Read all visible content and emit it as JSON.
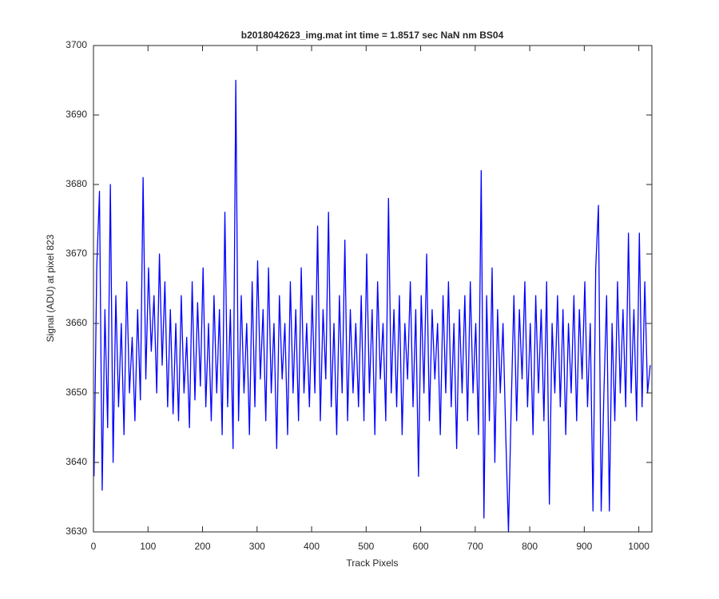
{
  "chart_data": {
    "type": "line",
    "title": "b2018042623_img.mat int time = 1.8517 sec  NaN nm BS04",
    "x_label": "Track Pixels",
    "y_label": "Signal (ADU) at pixel 823",
    "xlim": [
      0,
      1024
    ],
    "ylim": [
      3630,
      3700
    ],
    "xticks": [
      0,
      100,
      200,
      300,
      400,
      500,
      600,
      700,
      800,
      900,
      1000
    ],
    "yticks": [
      3630,
      3640,
      3650,
      3660,
      3670,
      3680,
      3690,
      3700
    ],
    "grid": false,
    "series": [
      {
        "name": "signal",
        "color": "#0000ff",
        "x": [
          1,
          6,
          11,
          16,
          21,
          26,
          31,
          36,
          41,
          46,
          51,
          56,
          61,
          66,
          71,
          76,
          81,
          86,
          91,
          96,
          101,
          106,
          111,
          116,
          121,
          126,
          131,
          136,
          141,
          146,
          151,
          156,
          161,
          166,
          171,
          176,
          181,
          186,
          191,
          196,
          201,
          206,
          211,
          216,
          221,
          226,
          231,
          236,
          241,
          246,
          251,
          256,
          261,
          266,
          271,
          276,
          281,
          286,
          291,
          296,
          301,
          306,
          311,
          316,
          321,
          326,
          331,
          336,
          341,
          346,
          351,
          356,
          361,
          366,
          371,
          376,
          381,
          386,
          391,
          396,
          401,
          406,
          411,
          416,
          421,
          426,
          431,
          436,
          441,
          446,
          451,
          456,
          461,
          466,
          471,
          476,
          481,
          486,
          491,
          496,
          501,
          506,
          511,
          516,
          521,
          526,
          531,
          536,
          541,
          546,
          551,
          556,
          561,
          566,
          571,
          576,
          581,
          586,
          591,
          596,
          601,
          606,
          611,
          616,
          621,
          626,
          631,
          636,
          641,
          646,
          651,
          656,
          661,
          666,
          671,
          676,
          681,
          686,
          691,
          696,
          701,
          706,
          711,
          716,
          721,
          726,
          731,
          736,
          741,
          746,
          751,
          756,
          761,
          766,
          771,
          776,
          781,
          786,
          791,
          796,
          801,
          806,
          811,
          816,
          821,
          826,
          831,
          836,
          841,
          846,
          851,
          856,
          861,
          866,
          871,
          876,
          881,
          886,
          891,
          896,
          901,
          906,
          911,
          916,
          921,
          926,
          931,
          936,
          941,
          946,
          951,
          956,
          961,
          966,
          971,
          976,
          981,
          986,
          991,
          996,
          1001,
          1006,
          1011,
          1016,
          1021
        ],
        "values": [
          3638,
          3668,
          3679,
          3636,
          3662,
          3645,
          3680,
          3640,
          3664,
          3648,
          3660,
          3644,
          3666,
          3650,
          3658,
          3646,
          3662,
          3649,
          3681,
          3652,
          3668,
          3656,
          3664,
          3650,
          3670,
          3654,
          3666,
          3648,
          3662,
          3647,
          3660,
          3646,
          3664,
          3650,
          3658,
          3645,
          3666,
          3649,
          3663,
          3651,
          3668,
          3648,
          3660,
          3646,
          3664,
          3650,
          3662,
          3644,
          3676,
          3648,
          3662,
          3642,
          3695,
          3646,
          3664,
          3650,
          3660,
          3644,
          3666,
          3648,
          3669,
          3652,
          3662,
          3646,
          3668,
          3650,
          3660,
          3642,
          3664,
          3652,
          3660,
          3644,
          3666,
          3650,
          3662,
          3646,
          3668,
          3650,
          3660,
          3648,
          3664,
          3650,
          3674,
          3646,
          3662,
          3652,
          3676,
          3648,
          3660,
          3644,
          3664,
          3650,
          3672,
          3646,
          3662,
          3650,
          3660,
          3648,
          3664,
          3646,
          3670,
          3650,
          3662,
          3644,
          3666,
          3652,
          3660,
          3646,
          3678,
          3650,
          3662,
          3648,
          3664,
          3644,
          3660,
          3652,
          3666,
          3648,
          3662,
          3638,
          3664,
          3650,
          3670,
          3646,
          3662,
          3652,
          3660,
          3644,
          3664,
          3650,
          3666,
          3648,
          3660,
          3642,
          3662,
          3650,
          3664,
          3646,
          3666,
          3650,
          3660,
          3644,
          3682,
          3632,
          3664,
          3646,
          3668,
          3640,
          3662,
          3650,
          3660,
          3644,
          3630,
          3648,
          3664,
          3646,
          3662,
          3652,
          3666,
          3648,
          3660,
          3644,
          3664,
          3650,
          3662,
          3646,
          3666,
          3634,
          3660,
          3650,
          3664,
          3648,
          3662,
          3644,
          3660,
          3650,
          3664,
          3646,
          3662,
          3652,
          3666,
          3648,
          3660,
          3633,
          3668,
          3677,
          3633,
          3650,
          3664,
          3633,
          3660,
          3646,
          3666,
          3650,
          3662,
          3648,
          3673,
          3650,
          3662,
          3646,
          3673,
          3648,
          3666,
          3650,
          3654
        ]
      }
    ]
  }
}
